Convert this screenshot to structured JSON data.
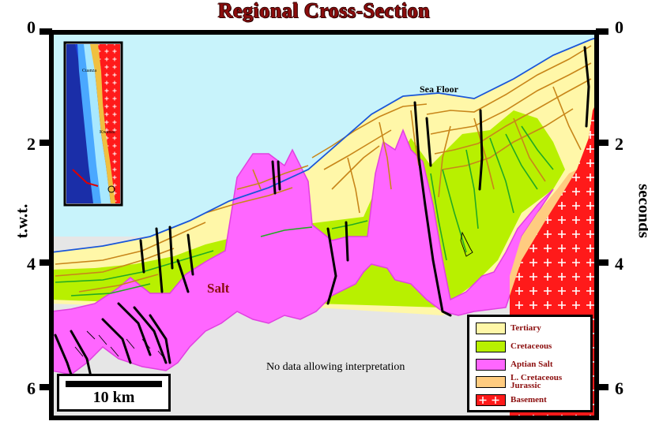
{
  "title": "Regional Cross-Section",
  "axis": {
    "left_label": "t.w.t.",
    "right_label": "seconds",
    "ticks": [
      "0",
      "2",
      "4",
      "6"
    ]
  },
  "labels": {
    "sea_floor": "Sea Floor",
    "salt": "Salt",
    "no_data": "No data allowing interpretation"
  },
  "scale_bar": "10 km",
  "inset_map": {
    "labels": [
      "Cuanza",
      "Kwanza"
    ]
  },
  "legend": [
    {
      "label": "Tertiary",
      "color": "#fff7a8"
    },
    {
      "label": "Cretaceous",
      "color": "#b8f000"
    },
    {
      "label": "Aptian Salt",
      "color": "#ff66ff"
    },
    {
      "label": "L. Cretaceous Jurassic",
      "color": "#ffcc80"
    },
    {
      "label": "Basement",
      "color": "#ff1a1a"
    }
  ],
  "colors": {
    "sea": "#c8f3fb",
    "no_data": "#e6e6e6",
    "tertiary_lines": "#c8861a",
    "cretaceous_lines": "#22aa22",
    "sea_floor_line": "#1a56d8",
    "fault": "#000000"
  }
}
